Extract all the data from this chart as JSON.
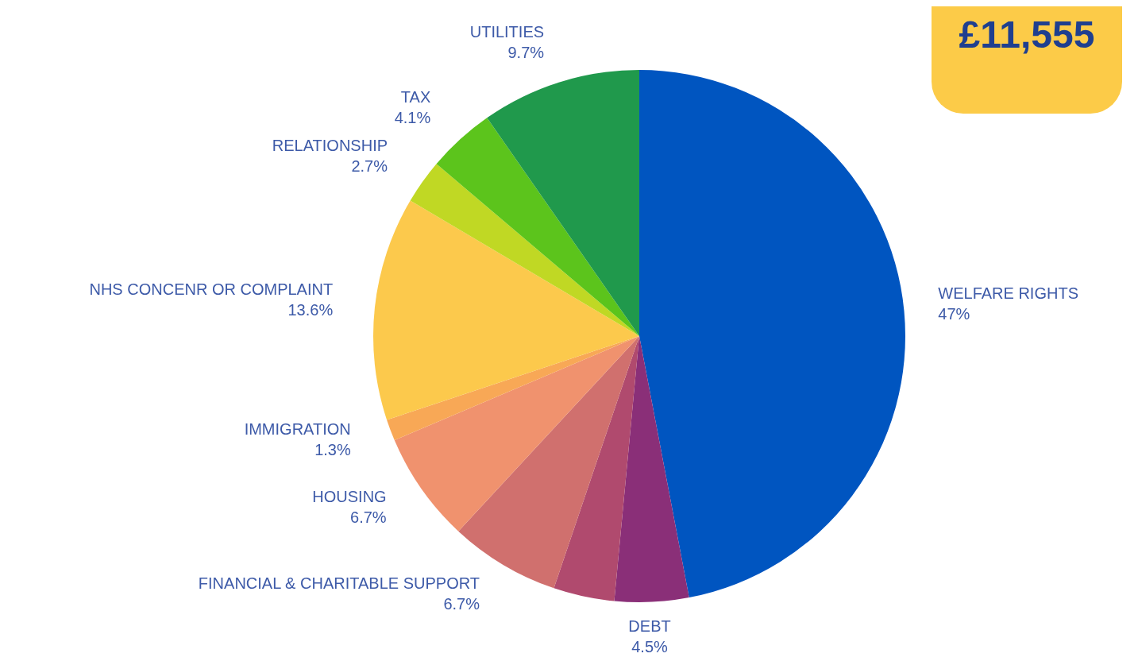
{
  "chart_data": {
    "type": "pie",
    "categories": [
      "WELFARE RIGHTS",
      "DEBT",
      null,
      "FINANCIAL & CHARITABLE SUPPORT",
      "HOUSING",
      "IMMIGRATION",
      "NHS CONCENR OR COMPLAINT",
      "RELATIONSHIP",
      "TAX",
      "UTILITIES"
    ],
    "values": [
      47,
      4.5,
      3.7,
      6.7,
      6.7,
      1.3,
      13.6,
      2.7,
      4.1,
      9.7
    ],
    "value_labels": [
      "47%",
      "4.5%",
      null,
      "6.7%",
      "6.7%",
      "1.3%",
      "13.6%",
      "2.7%",
      "4.1%",
      "9.7%"
    ],
    "colors": [
      "#0055c0",
      "#8a2f78",
      "#b04a6e",
      "#d0706e",
      "#f0926e",
      "#f8a856",
      "#fcc94c",
      "#c0d824",
      "#5cc41c",
      "#20994c"
    ],
    "annotations": [
      "£11,555"
    ],
    "legend": false
  }
}
